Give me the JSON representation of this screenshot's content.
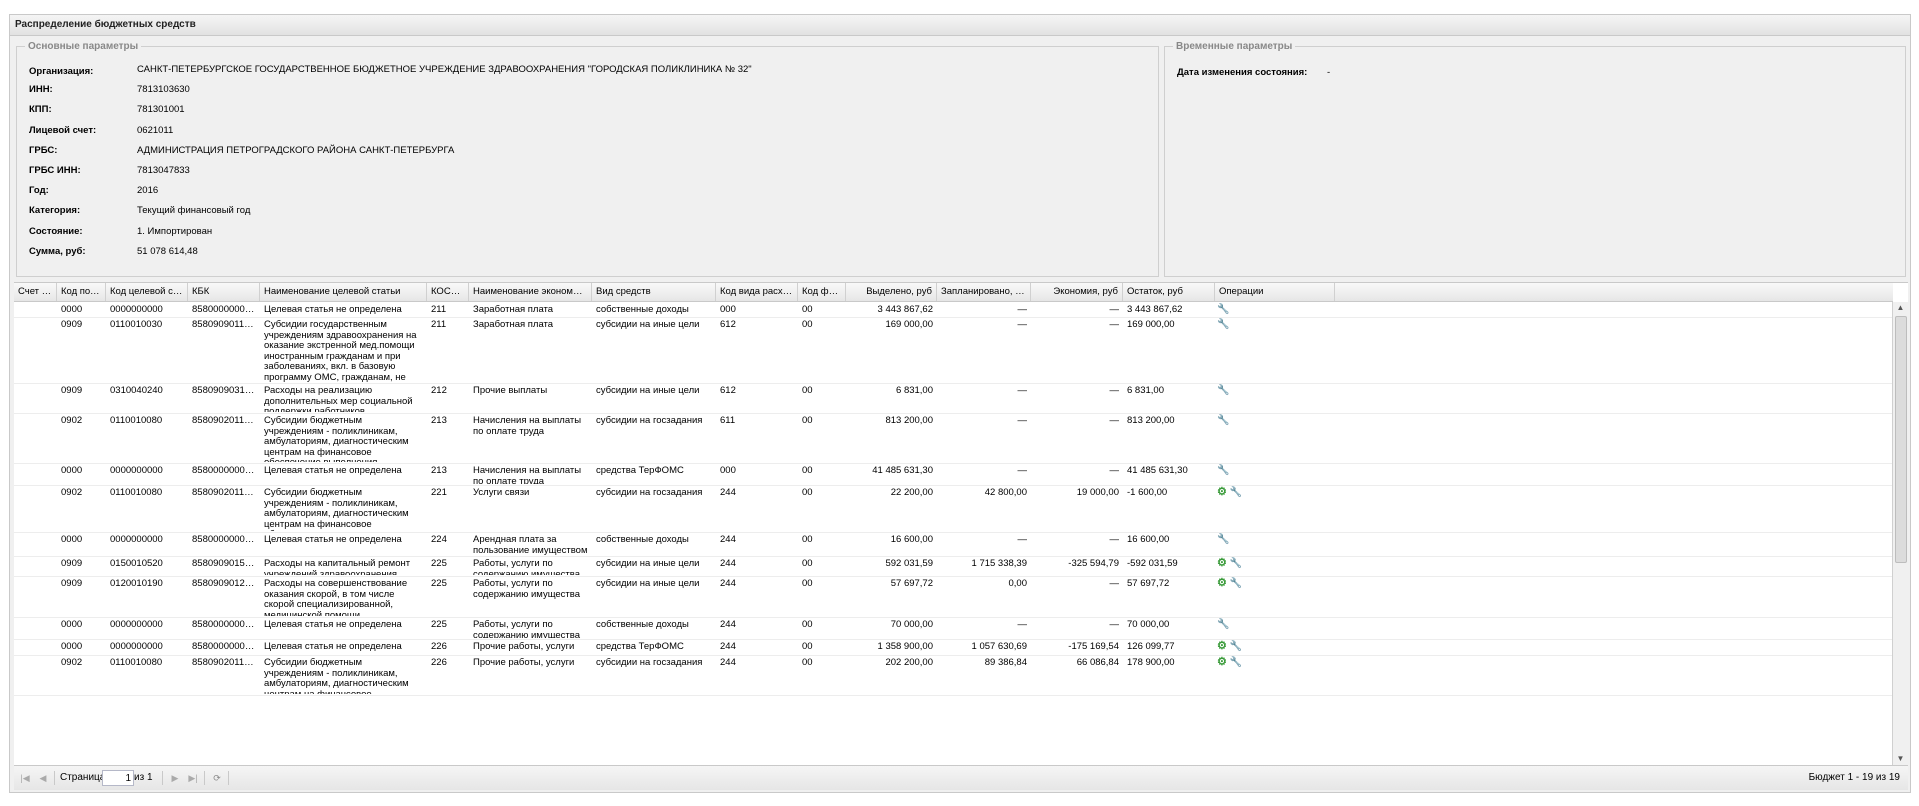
{
  "window": {
    "title": "Распределение бюджетных средств"
  },
  "basic": {
    "legend": "Основные параметры",
    "fields": [
      {
        "label": "Организация:",
        "value": "САНКТ-ПЕТЕРБУРГСКОЕ ГОСУДАРСТВЕННОЕ БЮДЖЕТНОЕ УЧРЕЖДЕНИЕ ЗДРАВООХРАНЕНИЯ \"ГОРОДСКАЯ ПОЛИКЛИНИКА № 32\""
      },
      {
        "label": "ИНН:",
        "value": "7813103630"
      },
      {
        "label": "КПП:",
        "value": "781301001"
      },
      {
        "label": "Лицевой счет:",
        "value": "0621011"
      },
      {
        "label": "ГРБС:",
        "value": "АДМИНИСТРАЦИЯ ПЕТРОГРАДСКОГО РАЙОНА САНКТ-ПЕТЕРБУРГА"
      },
      {
        "label": "ГРБС ИНН:",
        "value": "7813047833"
      },
      {
        "label": "Год:",
        "value": "2016"
      },
      {
        "label": "Категория:",
        "value": "Текущий финансовый год"
      },
      {
        "label": "Состояние:",
        "value": "1. Импортирован"
      },
      {
        "label": "Сумма, руб:",
        "value": "51 078 614,48"
      }
    ]
  },
  "temporal": {
    "legend": "Временные параметры",
    "fields": [
      {
        "label": "Дата изменения состояния:",
        "value": "-"
      }
    ]
  },
  "grid": {
    "columns": [
      "Счет р...",
      "Код подра...",
      "Код целевой статьи",
      "КБК",
      "Наименование целевой статьи",
      "КОСГУ...",
      "Наименование экономической ...",
      "Вид средств",
      "Код вида расходов",
      "Код фонда",
      "Выделено, руб",
      "Запланировано, руб",
      "Экономия, руб",
      "Остаток, руб",
      "Операции"
    ],
    "rows": [
      {
        "acc": "",
        "dep": "0000",
        "tgt": "0000000000",
        "kbk": "85800000000000...",
        "name": "Целевая статья не определена",
        "kosgu": "211",
        "econ": "Заработная плата",
        "vid": "собственные доходы",
        "kvr": "000",
        "fund": "00",
        "alloc": "3 443 867,62",
        "plan": "—",
        "econ_sum": "—",
        "rest": "3 443 867,62"
      },
      {
        "acc": "",
        "dep": "0909",
        "tgt": "0110010030",
        "kbk": "85809090110010...",
        "name": "Субсидии государственным учреждениям здравоохранения на оказание экстренной мед.помощи иностранным гражданам и при заболеваниях, вкл. в базовую программу ОМС, гражданам, не идентифицированным и не застрахованным в системе ОМС, в амбулаторных условиях",
        "kosgu": "211",
        "econ": "Заработная плата",
        "vid": "субсидии на иные цели",
        "kvr": "612",
        "fund": "00",
        "alloc": "169 000,00",
        "plan": "—",
        "econ_sum": "—",
        "rest": "169 000,00"
      },
      {
        "acc": "",
        "dep": "0909",
        "tgt": "0310040240",
        "kbk": "85809090310040...",
        "name": "Расходы на реализацию дополнительных мер социальной поддержки работников государственных учреждений",
        "kosgu": "212",
        "econ": "Прочие выплаты",
        "vid": "субсидии на иные цели",
        "kvr": "612",
        "fund": "00",
        "alloc": "6 831,00",
        "plan": "—",
        "econ_sum": "—",
        "rest": "6 831,00"
      },
      {
        "acc": "",
        "dep": "0902",
        "tgt": "0110010080",
        "kbk": "85809020110010...",
        "name": "Субсидии бюджетным учреждениям - поликлиникам, амбулаториям, диагностическим центрам на финансовое обеспечение выполнения государственного задания",
        "kosgu": "213",
        "econ": "Начисления на выплаты по оплате труда",
        "vid": "субсидии на госзадания",
        "kvr": "611",
        "fund": "00",
        "alloc": "813 200,00",
        "plan": "—",
        "econ_sum": "—",
        "rest": "813 200,00"
      },
      {
        "acc": "",
        "dep": "0000",
        "tgt": "0000000000",
        "kbk": "85800000000000...",
        "name": "Целевая статья не определена",
        "kosgu": "213",
        "econ": "Начисления на выплаты по оплате труда",
        "vid": "средства ТерФОМС",
        "kvr": "000",
        "fund": "00",
        "alloc": "41 485 631,30",
        "plan": "—",
        "econ_sum": "—",
        "rest": "41 485 631,30"
      },
      {
        "acc": "",
        "dep": "0902",
        "tgt": "0110010080",
        "kbk": "85809020110010...",
        "name": "Субсидии бюджетным учреждениям - поликлиникам, амбулаториям, диагностическим центрам на финансовое обеспечение выполнения государственного задания",
        "kosgu": "221",
        "econ": "Услуги связи",
        "vid": "субсидии на госзадания",
        "kvr": "244",
        "fund": "00",
        "alloc": "22 200,00",
        "plan": "42 800,00",
        "econ_sum": "19 000,00",
        "rest": "-1 600,00"
      },
      {
        "acc": "",
        "dep": "0000",
        "tgt": "0000000000",
        "kbk": "85800000000000...",
        "name": "Целевая статья не определена",
        "kosgu": "224",
        "econ": "Арендная плата за пользование имуществом",
        "vid": "собственные доходы",
        "kvr": "244",
        "fund": "00",
        "alloc": "16 600,00",
        "plan": "—",
        "econ_sum": "—",
        "rest": "16 600,00"
      },
      {
        "acc": "",
        "dep": "0909",
        "tgt": "0150010520",
        "kbk": "85809090150010...",
        "name": "Расходы на капитальный ремонт учреждений здравоохранения",
        "kosgu": "225",
        "econ": "Работы, услуги по содержанию имущества",
        "vid": "субсидии на иные цели",
        "kvr": "244",
        "fund": "00",
        "alloc": "592 031,59",
        "plan": "1 715 338,39",
        "econ_sum": "-325 594,79",
        "rest": "-592 031,59"
      },
      {
        "acc": "",
        "dep": "0909",
        "tgt": "0120010190",
        "kbk": "85809090120010...",
        "name": "Расходы на совершенствование оказания скорой, в том числе скорой специализированной, медицинской помощи, медицинской эвакуации",
        "kosgu": "225",
        "econ": "Работы, услуги по содержанию имущества",
        "vid": "субсидии на иные цели",
        "kvr": "244",
        "fund": "00",
        "alloc": "57 697,72",
        "plan": "0,00",
        "econ_sum": "—",
        "rest": "57 697,72"
      },
      {
        "acc": "",
        "dep": "0000",
        "tgt": "0000000000",
        "kbk": "85800000000000...",
        "name": "Целевая статья не определена",
        "kosgu": "225",
        "econ": "Работы, услуги по содержанию имущества",
        "vid": "собственные доходы",
        "kvr": "244",
        "fund": "00",
        "alloc": "70 000,00",
        "plan": "—",
        "econ_sum": "—",
        "rest": "70 000,00"
      },
      {
        "acc": "",
        "dep": "0000",
        "tgt": "0000000000",
        "kbk": "85800000000000...",
        "name": "Целевая статья не определена",
        "kosgu": "226",
        "econ": "Прочие работы, услуги",
        "vid": "средства ТерФОМС",
        "kvr": "244",
        "fund": "00",
        "alloc": "1 358 900,00",
        "plan": "1 057 630,69",
        "econ_sum": "-175 169,54",
        "rest": "126 099,77"
      },
      {
        "acc": "",
        "dep": "0902",
        "tgt": "0110010080",
        "kbk": "85809020110010...",
        "name": "Субсидии бюджетным учреждениям - поликлиникам, амбулаториям, диагностическим центрам на финансовое обеспечение выполнения государственного задания",
        "kosgu": "226",
        "econ": "Прочие работы, услуги",
        "vid": "субсидии на госзадания",
        "kvr": "244",
        "fund": "00",
        "alloc": "202 200,00",
        "plan": "89 386,84",
        "econ_sum": "66 086,84",
        "rest": "178 900,00"
      }
    ],
    "ops": [
      "wrench",
      "wrench",
      "wrench",
      "wrench",
      "wrench",
      "gear+wrench",
      "wrench",
      "gear+wrench",
      "gear+wrench",
      "wrench",
      "gear+wrench",
      "gear+wrench"
    ]
  },
  "pager": {
    "page_label": "Страница",
    "page_value": "1",
    "of_label": "из 1",
    "summary": "Бюджет 1 - 19 из 19"
  }
}
